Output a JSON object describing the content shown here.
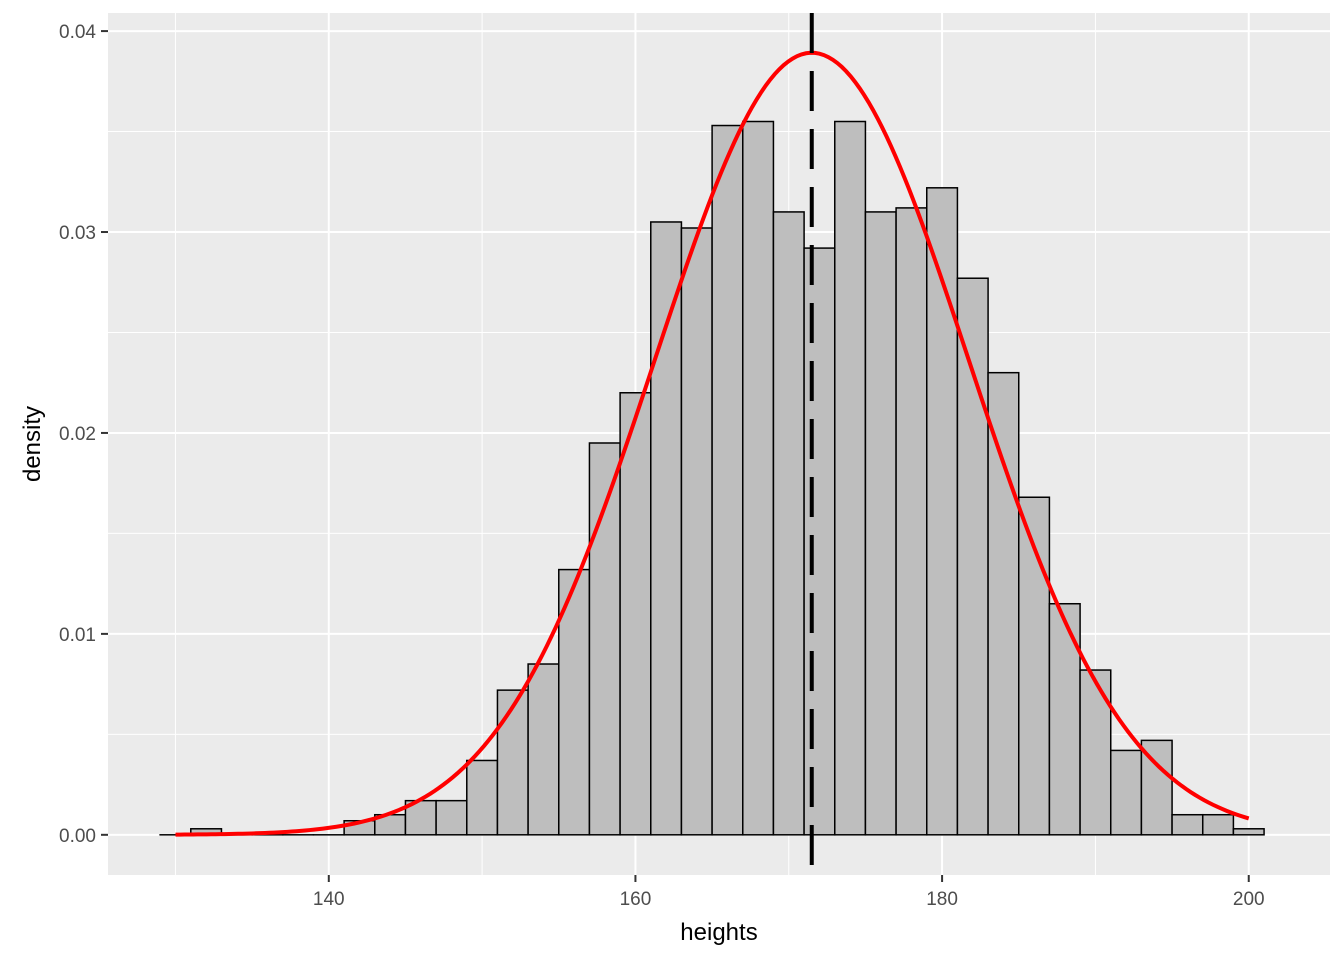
{
  "chart_data": {
    "type": "histogram",
    "title": "",
    "xlabel": "heights",
    "ylabel": "density",
    "xlim": [
      125.6,
      205.3
    ],
    "ylim": [
      -0.002,
      0.0409
    ],
    "x_ticks": [
      140,
      160,
      180,
      200
    ],
    "y_ticks": [
      0.0,
      0.01,
      0.02,
      0.03,
      0.04
    ],
    "x_tick_labels": [
      "140",
      "160",
      "180",
      "200"
    ],
    "y_tick_labels": [
      "0.00",
      "0.01",
      "0.02",
      "0.03",
      "0.04"
    ],
    "grid": true,
    "bin_edges": [
      129.0,
      131.0,
      133.0,
      135.0,
      137.0,
      139.0,
      141.0,
      143.0,
      145.0,
      147.0,
      149.0,
      151.0,
      153.0,
      155.0,
      157.0,
      159.0,
      161.0,
      163.0,
      165.0,
      167.0,
      169.0,
      171.0,
      173.0,
      175.0,
      177.0,
      179.0,
      181.0,
      183.0,
      185.0,
      187.0,
      189.0,
      191.0,
      193.0,
      195.0,
      197.0,
      199.0,
      201.0
    ],
    "density": [
      0.0,
      0.0003,
      0.0,
      0.0,
      0.0,
      0.0,
      0.0007,
      0.001,
      0.0017,
      0.0017,
      0.0037,
      0.0072,
      0.0085,
      0.0132,
      0.0195,
      0.022,
      0.0305,
      0.0302,
      0.0353,
      0.0355,
      0.031,
      0.0292,
      0.0355,
      0.031,
      0.0312,
      0.0322,
      0.0277,
      0.023,
      0.0168,
      0.0115,
      0.0082,
      0.0042,
      0.0047,
      0.001,
      0.001,
      0.0003
    ],
    "normal_curve": {
      "mean": 171.5,
      "sd": 10.25,
      "x_range": [
        130.0,
        200.0
      ],
      "color": "#ff0000"
    },
    "mean_line": {
      "x": 171.5,
      "style": "dashed",
      "color": "#000000"
    },
    "colors": {
      "panel": "#ebebeb",
      "grid": "#ffffff",
      "bar_fill": "#bebebe",
      "bar_stroke": "#000000"
    }
  }
}
